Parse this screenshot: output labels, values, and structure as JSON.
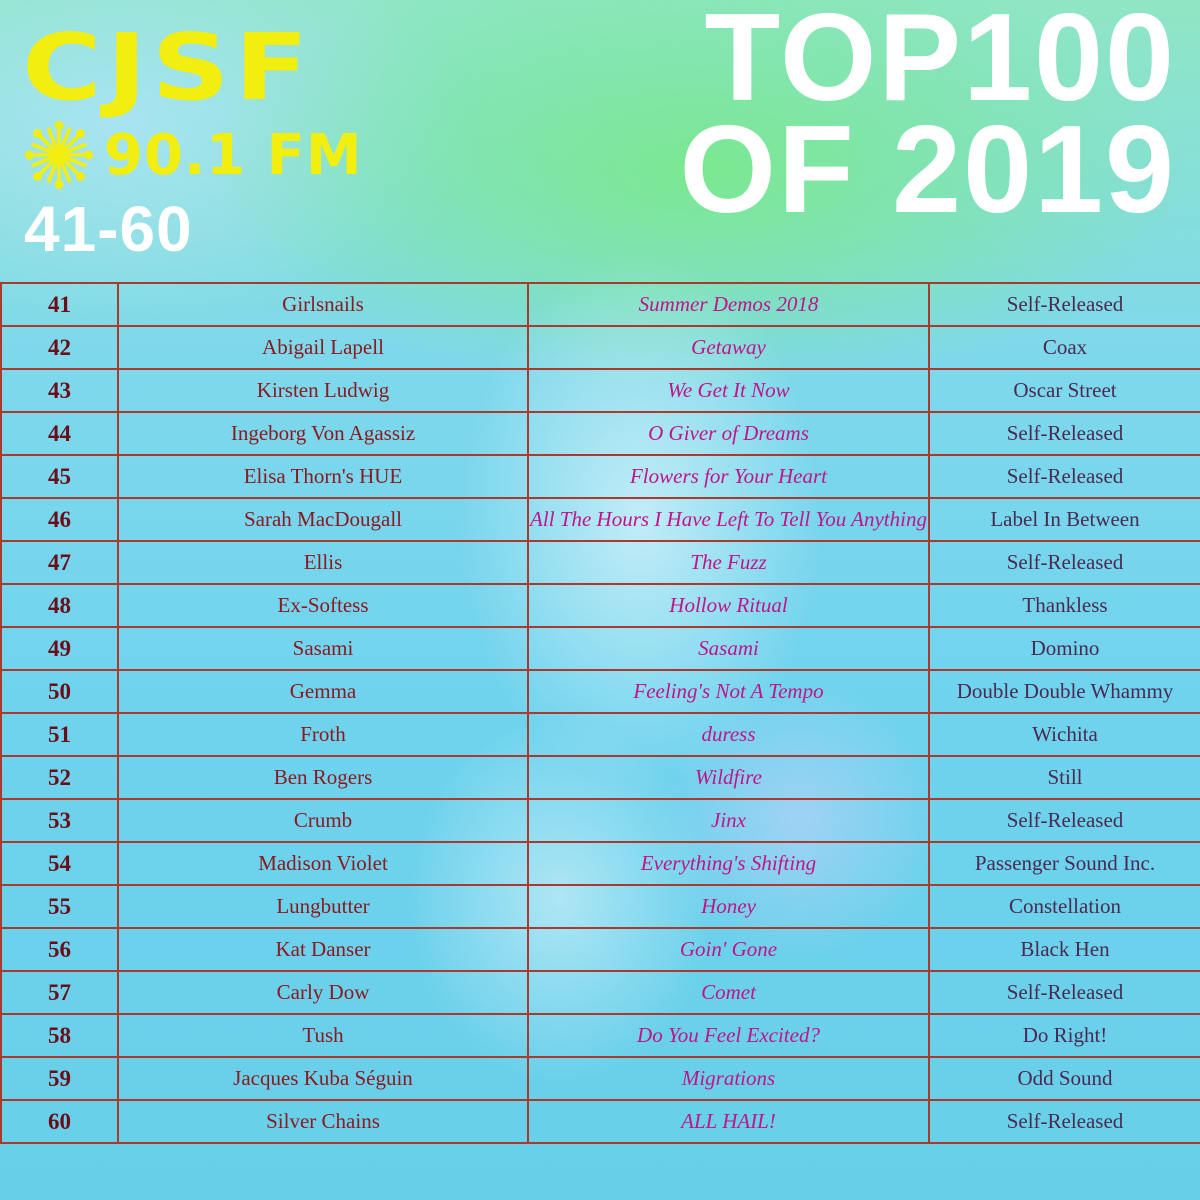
{
  "logo": {
    "station": "CJSF",
    "frequency": "90.1 FM"
  },
  "range": "41-60",
  "title": {
    "line1": "TOP100",
    "line2": "OF 2019"
  },
  "colors": {
    "logo": "#f2ee10",
    "title": "#ffffff",
    "grid": "#a83a2e",
    "album": "#c0148a",
    "artist": "#8a1a20"
  },
  "rows": [
    {
      "rank": "41",
      "artist": "Girlsnails",
      "album": "Summer Demos 2018",
      "label": "Self-Released"
    },
    {
      "rank": "42",
      "artist": "Abigail Lapell",
      "album": "Getaway",
      "label": "Coax"
    },
    {
      "rank": "43",
      "artist": "Kirsten Ludwig",
      "album": "We Get It Now",
      "label": "Oscar Street"
    },
    {
      "rank": "44",
      "artist": "Ingeborg Von Agassiz",
      "album": "O Giver of Dreams",
      "label": "Self-Released"
    },
    {
      "rank": "45",
      "artist": "Elisa Thorn's HUE",
      "album": "Flowers for Your Heart",
      "label": "Self-Released"
    },
    {
      "rank": "46",
      "artist": "Sarah MacDougall",
      "album": "All The Hours I Have Left To Tell You Anything",
      "label": "Label In Between"
    },
    {
      "rank": "47",
      "artist": "Ellis",
      "album": "The Fuzz",
      "label": "Self-Released"
    },
    {
      "rank": "48",
      "artist": "Ex-Softess",
      "album": "Hollow Ritual",
      "label": "Thankless"
    },
    {
      "rank": "49",
      "artist": "Sasami",
      "album": "Sasami",
      "label": "Domino"
    },
    {
      "rank": "50",
      "artist": "Gemma",
      "album": "Feeling's Not A Tempo",
      "label": "Double Double Whammy"
    },
    {
      "rank": "51",
      "artist": "Froth",
      "album": "duress",
      "label": "Wichita"
    },
    {
      "rank": "52",
      "artist": "Ben Rogers",
      "album": "Wildfire",
      "label": "Still"
    },
    {
      "rank": "53",
      "artist": "Crumb",
      "album": "Jinx",
      "label": "Self-Released"
    },
    {
      "rank": "54",
      "artist": "Madison Violet",
      "album": "Everything's Shifting",
      "label": "Passenger Sound Inc."
    },
    {
      "rank": "55",
      "artist": "Lungbutter",
      "album": "Honey",
      "label": "Constellation"
    },
    {
      "rank": "56",
      "artist": "Kat Danser",
      "album": "Goin' Gone",
      "label": "Black Hen"
    },
    {
      "rank": "57",
      "artist": "Carly Dow",
      "album": "Comet",
      "label": "Self-Released"
    },
    {
      "rank": "58",
      "artist": "Tush",
      "album": "Do You Feel Excited?",
      "label": "Do Right!"
    },
    {
      "rank": "59",
      "artist": "Jacques Kuba Séguin",
      "album": "Migrations",
      "label": "Odd Sound"
    },
    {
      "rank": "60",
      "artist": "Silver Chains",
      "album": "ALL HAIL!",
      "label": "Self-Released"
    }
  ]
}
